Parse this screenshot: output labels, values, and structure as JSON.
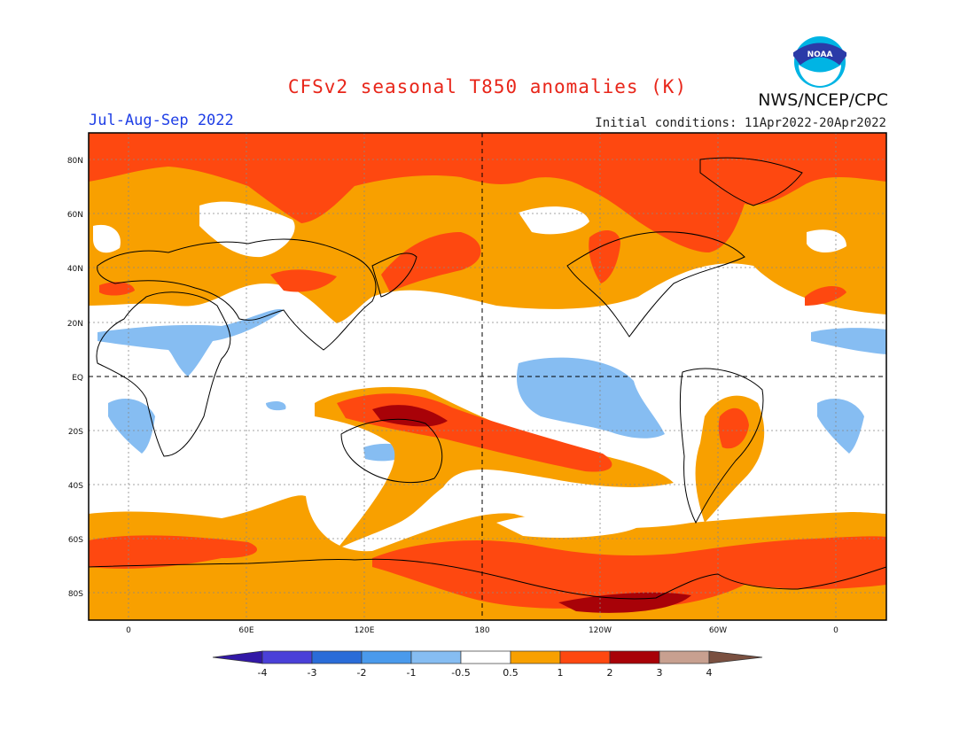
{
  "title": "CFSv2 seasonal T850 anomalies (K)",
  "season": "Jul-Aug-Sep 2022",
  "initial_conditions": "Initial conditions: 11Apr2022-20Apr2022",
  "agency": "NWS/NCEP/CPC",
  "logo_text": "NOAA",
  "map": {
    "lat_labels": [
      "80N",
      "60N",
      "40N",
      "20N",
      "EQ",
      "20S",
      "40S",
      "60S",
      "80S"
    ],
    "lon_labels": [
      "0",
      "60E",
      "120E",
      "180",
      "120W",
      "60W",
      "0"
    ]
  },
  "colorbar": {
    "ticks": [
      "-4",
      "-3",
      "-2",
      "-1",
      "-0.5",
      "0.5",
      "1",
      "2",
      "3",
      "4"
    ],
    "colors": [
      "#3218a6",
      "#4a40d8",
      "#2a6cd8",
      "#4a9aec",
      "#86bdf2",
      "#ffffff",
      "#f8a000",
      "#fe4810",
      "#a80208",
      "#c8a090",
      "#7a5040"
    ]
  },
  "anomaly_regions": {
    "arctic_band": "1 to 2 K",
    "tropical_east_pacific": "-0.5 to -1 K",
    "west_pacific_australia_north": "2 to 3 K",
    "southern_ocean_band": "1 to 2 K"
  }
}
